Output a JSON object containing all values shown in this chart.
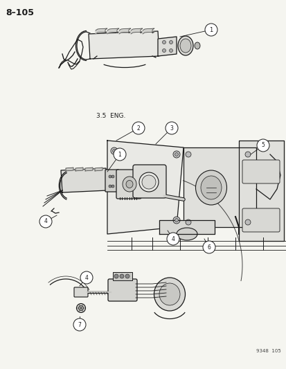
{
  "page_number": "8–105",
  "catalog_number": "9348  105",
  "label_35eng": "3.5  ENG.",
  "background_color": "#f5f5f0",
  "line_color": "#1a1a1a",
  "fig_width": 4.14,
  "fig_height": 5.33,
  "dpi": 100
}
